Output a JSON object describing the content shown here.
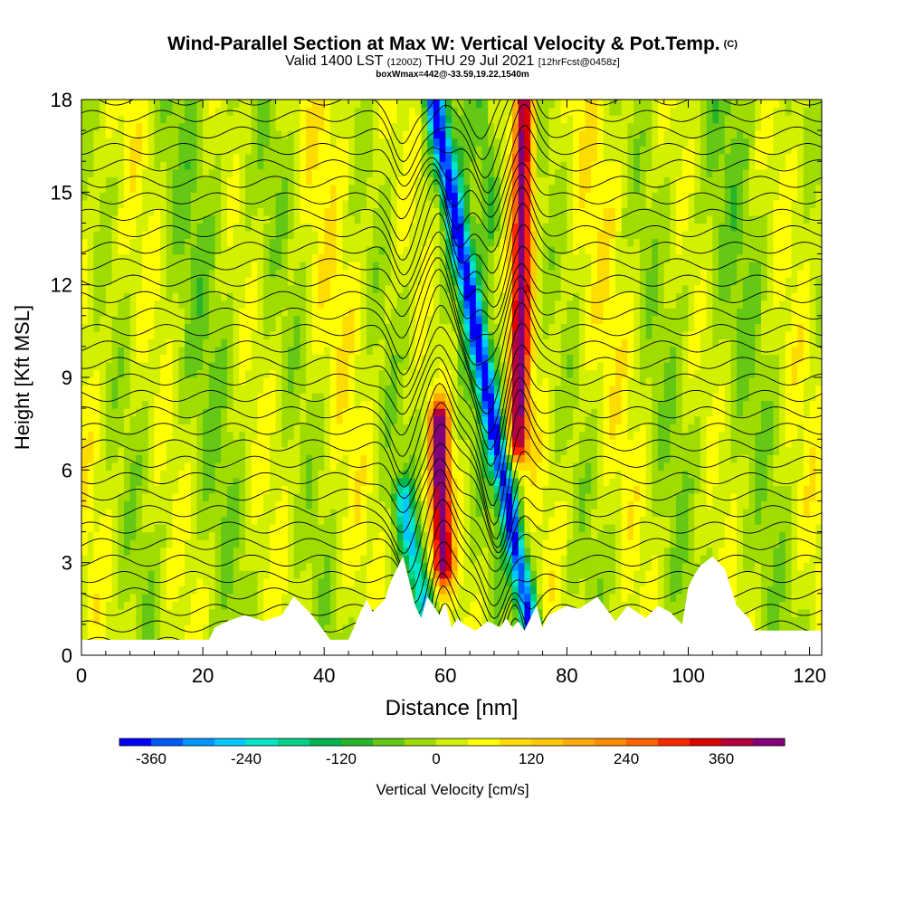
{
  "title": "Wind-Parallel Section at Max W: Vertical Velocity & Pot.Temp.",
  "title_mark": "(C)",
  "subtitle": {
    "valid": "Valid 1400 LST",
    "utc": "(1200Z)",
    "date": "THU 29 Jul 2021",
    "forecast": "[12hrFcst@0458z]"
  },
  "box_info": "boxWmax=442@-33.59,19.22,1540m",
  "chart_data": {
    "type": "heatmap",
    "title": "Wind-Parallel Section at Max W: Vertical Velocity & Pot.Temp.",
    "xlabel": "Distance [nm]",
    "ylabel": "Height [Kft MSL]",
    "xlim": [
      0,
      122
    ],
    "ylim": [
      0,
      18
    ],
    "x_ticks": [
      0,
      20,
      40,
      60,
      80,
      100,
      120
    ],
    "y_ticks": [
      0,
      3,
      6,
      9,
      12,
      15,
      18
    ],
    "colorbar": {
      "label": "Vertical Velocity [cm/s]",
      "tick_values": [
        -360,
        -240,
        -120,
        0,
        120,
        240,
        360
      ],
      "range": [
        -400,
        440
      ],
      "colors": [
        "#0000ff",
        "#005aff",
        "#0096ff",
        "#00c8ff",
        "#00e6c8",
        "#00d28c",
        "#00b450",
        "#28b428",
        "#64c814",
        "#a0dc00",
        "#d2f000",
        "#ffff00",
        "#ffdc00",
        "#ffc800",
        "#ffaa00",
        "#ff8c00",
        "#ff6400",
        "#ff2800",
        "#dc0000",
        "#b4003c",
        "#820078"
      ]
    },
    "vertical_velocity_features": [
      {
        "name": "downdraft",
        "x_start": 58,
        "x_end": 74,
        "h_start": 18,
        "h_end": 1,
        "peak": -360
      },
      {
        "name": "updraft",
        "x_start": 73,
        "x_end": 72,
        "h_start": 18,
        "h_end": 7,
        "peak": 400
      },
      {
        "name": "updraft",
        "x_start": 59,
        "x_end": 59.5,
        "h_start": 7.5,
        "h_end": 3,
        "peak": 442
      },
      {
        "name": "downdraft",
        "x_start": 53,
        "x_end": 57,
        "h_start": 5,
        "h_end": 1,
        "peak": -220
      },
      {
        "name": "downdraft",
        "x_start": 66,
        "x_end": 68,
        "h_start": 18,
        "h_end": 14,
        "peak": -90
      }
    ],
    "terrain_profile": {
      "x": [
        0,
        21,
        22,
        24,
        27,
        30,
        33,
        35,
        38,
        41,
        44,
        46,
        47,
        48,
        50,
        51,
        53,
        54,
        55,
        56,
        57,
        59,
        60,
        61,
        62,
        63,
        64,
        65,
        67,
        69,
        70,
        71,
        72,
        73,
        74,
        75,
        76,
        77,
        80,
        82,
        85,
        88,
        90,
        93,
        95,
        97,
        99,
        100,
        101,
        102,
        104,
        106,
        108,
        110,
        111,
        115,
        121
      ],
      "height": [
        0.5,
        0.5,
        0.9,
        1.1,
        1.3,
        1.1,
        1.3,
        1.9,
        1.3,
        0.5,
        0.5,
        1.4,
        1.8,
        1.4,
        1.8,
        2.4,
        3.2,
        2.4,
        1.6,
        1.2,
        1.9,
        1.3,
        1.7,
        0.9,
        1.2,
        1.0,
        0.9,
        0.8,
        1.1,
        0.9,
        1.2,
        0.9,
        1.1,
        0.8,
        1.2,
        1.6,
        0.9,
        1.3,
        1.6,
        1.5,
        1.9,
        1.1,
        1.6,
        1.2,
        1.6,
        1.4,
        1.0,
        2.2,
        2.6,
        2.9,
        3.2,
        2.8,
        1.6,
        1.2,
        0.8,
        0.8,
        0.8
      ]
    },
    "isentropes": 34
  }
}
